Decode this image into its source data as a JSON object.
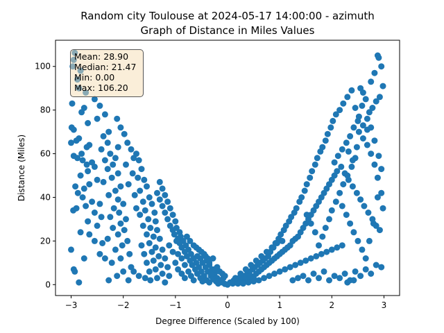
{
  "chart_data": {
    "type": "scatter",
    "title_line1": "Random city Toulouse at 2024-05-17 14:00:00  - azimuth",
    "title_line2": "Graph of Distance in Miles Values",
    "xlabel": "Degree Difference (Scaled by 100)",
    "ylabel": "Distance (Miles)",
    "xlim": [
      -3.3,
      3.3
    ],
    "ylim": [
      -5,
      112
    ],
    "x_ticks": [
      -3,
      -2,
      -1,
      0,
      1,
      2,
      3
    ],
    "x_tick_labels": [
      "−3",
      "−2",
      "−1",
      "0",
      "1",
      "2",
      "3"
    ],
    "y_ticks": [
      0,
      20,
      40,
      60,
      80,
      100
    ],
    "y_tick_labels": [
      "0",
      "20",
      "40",
      "60",
      "80",
      "100"
    ],
    "grid": false,
    "marker_color": "#1f77b4",
    "stats": {
      "mean": "Mean: 28.90",
      "median": "Median: 21.47",
      "min": "Min: 0.00",
      "max": "Max: 106.20"
    },
    "points": [
      [
        -2.93,
        106.2
      ],
      [
        -2.95,
        103
      ],
      [
        -2.82,
        98
      ],
      [
        -2.97,
        100
      ],
      [
        -2.88,
        94
      ],
      [
        -2.85,
        90
      ],
      [
        -2.72,
        88
      ],
      [
        -2.98,
        83
      ],
      [
        -2.75,
        81
      ],
      [
        -2.8,
        79
      ],
      [
        -2.68,
        74
      ],
      [
        -2.99,
        72
      ],
      [
        -2.95,
        71
      ],
      [
        -2.85,
        67
      ],
      [
        -2.9,
        66
      ],
      [
        -3.0,
        65
      ],
      [
        -2.65,
        64
      ],
      [
        -2.7,
        63
      ],
      [
        -2.8,
        60
      ],
      [
        -2.95,
        59
      ],
      [
        -2.88,
        58
      ],
      [
        -2.78,
        57
      ],
      [
        -2.6,
        56
      ],
      [
        -2.7,
        55
      ],
      [
        -2.55,
        54
      ],
      [
        -2.68,
        52
      ],
      [
        -2.82,
        50
      ],
      [
        -2.5,
        48
      ],
      [
        -2.65,
        46
      ],
      [
        -2.92,
        45
      ],
      [
        -2.75,
        44
      ],
      [
        -2.87,
        42
      ],
      [
        -2.78,
        40
      ],
      [
        -2.6,
        38
      ],
      [
        -2.45,
        37
      ],
      [
        -2.72,
        36
      ],
      [
        -2.9,
        35
      ],
      [
        -2.96,
        34
      ],
      [
        -2.55,
        33
      ],
      [
        -2.42,
        31
      ],
      [
        -2.68,
        29
      ],
      [
        -2.5,
        27
      ],
      [
        -2.82,
        24
      ],
      [
        -2.65,
        23
      ],
      [
        -2.55,
        20
      ],
      [
        -2.4,
        19
      ],
      [
        -2.75,
        12
      ],
      [
        -2.95,
        7
      ],
      [
        -2.93,
        6
      ],
      [
        -2.85,
        1
      ],
      [
        -3.0,
        16
      ],
      [
        -2.45,
        14
      ],
      [
        -2.35,
        12
      ],
      [
        -2.55,
        85
      ],
      [
        -2.45,
        82
      ],
      [
        -2.35,
        78
      ],
      [
        -2.5,
        76
      ],
      [
        -2.28,
        70
      ],
      [
        -2.38,
        68
      ],
      [
        -2.3,
        65
      ],
      [
        -2.42,
        62
      ],
      [
        -2.25,
        60
      ],
      [
        -2.15,
        58
      ],
      [
        -2.35,
        57
      ],
      [
        -2.2,
        55
      ],
      [
        -2.3,
        53
      ],
      [
        -2.1,
        51
      ],
      [
        -2.22,
        49
      ],
      [
        -2.38,
        47
      ],
      [
        -2.05,
        45
      ],
      [
        -2.15,
        43
      ],
      [
        -2.28,
        41
      ],
      [
        -2.1,
        39
      ],
      [
        -2.0,
        37
      ],
      [
        -2.18,
        35
      ],
      [
        -2.08,
        33
      ],
      [
        -2.25,
        31
      ],
      [
        -1.95,
        30
      ],
      [
        -2.05,
        28
      ],
      [
        -2.2,
        26
      ],
      [
        -1.98,
        25
      ],
      [
        -2.1,
        23
      ],
      [
        -2.3,
        21
      ],
      [
        -1.92,
        20
      ],
      [
        -2.02,
        18
      ],
      [
        -2.15,
        16
      ],
      [
        -1.88,
        14
      ],
      [
        -2.05,
        12
      ],
      [
        -2.22,
        10
      ],
      [
        -1.85,
        8
      ],
      [
        -2.0,
        6
      ],
      [
        -2.12,
        4
      ],
      [
        -1.9,
        2
      ],
      [
        -2.28,
        2
      ],
      [
        -2.12,
        76
      ],
      [
        -2.05,
        72
      ],
      [
        -1.98,
        69
      ],
      [
        -1.92,
        65
      ],
      [
        -2.1,
        63
      ],
      [
        -1.85,
        62
      ],
      [
        -1.75,
        60
      ],
      [
        -1.8,
        58
      ],
      [
        -1.7,
        57
      ],
      [
        -1.95,
        55
      ],
      [
        -1.65,
        53
      ],
      [
        -1.82,
        51
      ],
      [
        -1.72,
        49
      ],
      [
        -1.6,
        48
      ],
      [
        -1.9,
        46
      ],
      [
        -1.55,
        45
      ],
      [
        -1.68,
        43
      ],
      [
        -1.78,
        41
      ],
      [
        -1.5,
        40
      ],
      [
        -1.62,
        38
      ],
      [
        -1.45,
        37
      ],
      [
        -1.75,
        35
      ],
      [
        -1.58,
        34
      ],
      [
        -1.4,
        33
      ],
      [
        -1.68,
        32
      ],
      [
        -1.52,
        30
      ],
      [
        -1.38,
        29
      ],
      [
        -1.62,
        27
      ],
      [
        -1.48,
        26
      ],
      [
        -1.35,
        25
      ],
      [
        -1.55,
        23
      ],
      [
        -1.42,
        22
      ],
      [
        -1.3,
        21
      ],
      [
        -1.5,
        19
      ],
      [
        -1.65,
        18
      ],
      [
        -1.38,
        17
      ],
      [
        -1.25,
        16
      ],
      [
        -1.45,
        15
      ],
      [
        -1.6,
        14
      ],
      [
        -1.32,
        13
      ],
      [
        -1.2,
        12
      ],
      [
        -1.42,
        11
      ],
      [
        -1.55,
        10
      ],
      [
        -1.28,
        9
      ],
      [
        -1.15,
        8
      ],
      [
        -1.38,
        7
      ],
      [
        -1.5,
        6
      ],
      [
        -1.25,
        5
      ],
      [
        -1.12,
        4
      ],
      [
        -1.35,
        3
      ],
      [
        -1.48,
        2
      ],
      [
        -1.2,
        1
      ],
      [
        -1.7,
        4
      ],
      [
        -1.8,
        6
      ],
      [
        -1.58,
        3
      ],
      [
        -1.3,
        47
      ],
      [
        -1.25,
        44
      ],
      [
        -1.35,
        42
      ],
      [
        -1.2,
        41
      ],
      [
        -1.3,
        39
      ],
      [
        -1.15,
        38
      ],
      [
        -1.25,
        36
      ],
      [
        -1.1,
        35
      ],
      [
        -1.2,
        33
      ],
      [
        -1.05,
        32
      ],
      [
        -1.15,
        30
      ],
      [
        -1.0,
        29
      ],
      [
        -1.1,
        27
      ],
      [
        -0.98,
        26
      ],
      [
        -1.05,
        25
      ],
      [
        -0.92,
        24
      ],
      [
        -1.02,
        23
      ],
      [
        -0.9,
        22
      ],
      [
        -0.95,
        21
      ],
      [
        -0.85,
        20
      ],
      [
        -0.92,
        19
      ],
      [
        -0.8,
        18
      ],
      [
        -0.88,
        17
      ],
      [
        -0.75,
        16
      ],
      [
        -0.82,
        15
      ],
      [
        -0.7,
        14
      ],
      [
        -0.78,
        13
      ],
      [
        -0.65,
        12
      ],
      [
        -0.72,
        11
      ],
      [
        -0.6,
        10
      ],
      [
        -0.68,
        9
      ],
      [
        -0.55,
        8
      ],
      [
        -0.62,
        7
      ],
      [
        -0.5,
        6
      ],
      [
        -0.58,
        5
      ],
      [
        -0.45,
        4
      ],
      [
        -0.52,
        3
      ],
      [
        -0.4,
        2
      ],
      [
        -0.48,
        1.5
      ],
      [
        -0.35,
        1
      ],
      [
        -0.95,
        14
      ],
      [
        -0.88,
        12
      ],
      [
        -1.0,
        10
      ],
      [
        -0.82,
        9
      ],
      [
        -0.95,
        7
      ],
      [
        -0.75,
        6
      ],
      [
        -0.88,
        5
      ],
      [
        -0.7,
        4
      ],
      [
        -0.82,
        3
      ],
      [
        -0.65,
        2
      ],
      [
        -1.05,
        15
      ],
      [
        -1.12,
        18
      ],
      [
        -0.98,
        20
      ],
      [
        -0.78,
        22
      ],
      [
        -0.72,
        20
      ],
      [
        -0.65,
        18
      ],
      [
        -0.6,
        17
      ],
      [
        -0.55,
        16
      ],
      [
        -0.5,
        15
      ],
      [
        -0.45,
        14
      ],
      [
        -0.58,
        13
      ],
      [
        -0.52,
        12
      ],
      [
        -0.4,
        11
      ],
      [
        -0.48,
        10
      ],
      [
        -0.35,
        9
      ],
      [
        -0.42,
        8
      ],
      [
        -0.3,
        7
      ],
      [
        -0.38,
        6
      ],
      [
        -0.25,
        5
      ],
      [
        -0.32,
        4
      ],
      [
        -0.2,
        3
      ],
      [
        -0.28,
        2.5
      ],
      [
        -0.15,
        2
      ],
      [
        -0.22,
        1.5
      ],
      [
        -0.1,
        1
      ],
      [
        -0.18,
        0.5
      ],
      [
        -0.05,
        0.3
      ],
      [
        -0.12,
        2
      ],
      [
        -0.08,
        3
      ],
      [
        -0.3,
        5
      ],
      [
        -0.25,
        7
      ],
      [
        -0.35,
        10
      ],
      [
        -0.28,
        12
      ],
      [
        -0.42,
        13
      ],
      [
        -0.38,
        12
      ],
      [
        -0.2,
        8
      ],
      [
        -0.15,
        6
      ],
      [
        -0.1,
        5
      ],
      [
        -0.05,
        4
      ],
      [
        0.0,
        0.0
      ],
      [
        0.05,
        1
      ],
      [
        0.1,
        0.5
      ],
      [
        0.12,
        2
      ],
      [
        0.15,
        1
      ],
      [
        0.2,
        0.5
      ],
      [
        0.22,
        3
      ],
      [
        0.25,
        2
      ],
      [
        0.3,
        1
      ],
      [
        0.32,
        4
      ],
      [
        0.35,
        3
      ],
      [
        0.38,
        5
      ],
      [
        0.4,
        2
      ],
      [
        0.42,
        6
      ],
      [
        0.45,
        4
      ],
      [
        0.48,
        7
      ],
      [
        0.5,
        3
      ],
      [
        0.52,
        8
      ],
      [
        0.55,
        5
      ],
      [
        0.58,
        9
      ],
      [
        0.6,
        6
      ],
      [
        0.62,
        10
      ],
      [
        0.65,
        7
      ],
      [
        0.68,
        11
      ],
      [
        0.7,
        8
      ],
      [
        0.72,
        12
      ],
      [
        0.75,
        9
      ],
      [
        0.78,
        13
      ],
      [
        0.8,
        10
      ],
      [
        0.82,
        15
      ],
      [
        0.85,
        11
      ],
      [
        0.88,
        17
      ],
      [
        0.9,
        12
      ],
      [
        0.92,
        19
      ],
      [
        0.95,
        13
      ],
      [
        0.98,
        21
      ],
      [
        1.0,
        14
      ],
      [
        1.02,
        23
      ],
      [
        1.05,
        15
      ],
      [
        1.08,
        25
      ],
      [
        1.1,
        16
      ],
      [
        1.12,
        27
      ],
      [
        1.15,
        17
      ],
      [
        1.18,
        29
      ],
      [
        1.2,
        18
      ],
      [
        1.22,
        31
      ],
      [
        1.25,
        20
      ],
      [
        1.28,
        33
      ],
      [
        1.3,
        21
      ],
      [
        1.32,
        35
      ],
      [
        1.35,
        22
      ],
      [
        1.38,
        38
      ],
      [
        1.4,
        24
      ],
      [
        1.42,
        40
      ],
      [
        1.45,
        26
      ],
      [
        1.48,
        43
      ],
      [
        1.5,
        28
      ],
      [
        1.52,
        46
      ],
      [
        1.55,
        30
      ],
      [
        1.58,
        49
      ],
      [
        1.6,
        32
      ],
      [
        1.62,
        52
      ],
      [
        1.65,
        34
      ],
      [
        1.68,
        55
      ],
      [
        1.7,
        36
      ],
      [
        1.72,
        58
      ],
      [
        1.75,
        38
      ],
      [
        1.78,
        61
      ],
      [
        1.8,
        40
      ],
      [
        1.82,
        63
      ],
      [
        1.85,
        42
      ],
      [
        1.88,
        66
      ],
      [
        1.9,
        44
      ],
      [
        1.92,
        69
      ],
      [
        1.95,
        46
      ],
      [
        1.98,
        72
      ],
      [
        2.0,
        48
      ],
      [
        2.02,
        75
      ],
      [
        2.05,
        50
      ],
      [
        2.08,
        78
      ],
      [
        2.1,
        52
      ],
      [
        0.15,
        3
      ],
      [
        0.25,
        5
      ],
      [
        0.35,
        7
      ],
      [
        0.45,
        9
      ],
      [
        0.55,
        11
      ],
      [
        0.65,
        13
      ],
      [
        0.75,
        15
      ],
      [
        0.85,
        17
      ],
      [
        0.95,
        19
      ],
      [
        1.05,
        20
      ],
      [
        0.3,
        0.5
      ],
      [
        0.4,
        1
      ],
      [
        0.5,
        1.5
      ],
      [
        0.6,
        2
      ],
      [
        0.7,
        3
      ],
      [
        0.8,
        4
      ],
      [
        0.9,
        5
      ],
      [
        1.0,
        6
      ],
      [
        1.1,
        7
      ],
      [
        1.2,
        8
      ],
      [
        1.3,
        9
      ],
      [
        1.4,
        10
      ],
      [
        1.5,
        11
      ],
      [
        1.6,
        12
      ],
      [
        1.7,
        13
      ],
      [
        1.8,
        14
      ],
      [
        1.9,
        15
      ],
      [
        2.0,
        16
      ],
      [
        2.1,
        17
      ],
      [
        2.2,
        18
      ],
      [
        1.25,
        2
      ],
      [
        1.35,
        3
      ],
      [
        1.45,
        4
      ],
      [
        1.55,
        2
      ],
      [
        1.65,
        5
      ],
      [
        1.75,
        3
      ],
      [
        1.85,
        6
      ],
      [
        1.95,
        2
      ],
      [
        2.05,
        4
      ],
      [
        2.15,
        3
      ],
      [
        2.25,
        5
      ],
      [
        2.35,
        2
      ],
      [
        2.45,
        6
      ],
      [
        2.55,
        4
      ],
      [
        2.65,
        7
      ],
      [
        2.75,
        5
      ],
      [
        2.85,
        9
      ],
      [
        2.95,
        8
      ],
      [
        2.3,
        1
      ],
      [
        2.42,
        2
      ],
      [
        2.15,
        80
      ],
      [
        2.22,
        83
      ],
      [
        2.3,
        86
      ],
      [
        2.38,
        89
      ],
      [
        2.45,
        81
      ],
      [
        2.52,
        77
      ],
      [
        2.6,
        73
      ],
      [
        2.68,
        71
      ],
      [
        2.75,
        93
      ],
      [
        2.82,
        97
      ],
      [
        2.88,
        105
      ],
      [
        2.9,
        104
      ],
      [
        2.95,
        100
      ],
      [
        2.98,
        91
      ],
      [
        2.92,
        86
      ],
      [
        2.85,
        84
      ],
      [
        2.78,
        81
      ],
      [
        2.72,
        79
      ],
      [
        2.65,
        85
      ],
      [
        2.58,
        82
      ],
      [
        2.5,
        75
      ],
      [
        2.42,
        72
      ],
      [
        2.35,
        68
      ],
      [
        2.28,
        65
      ],
      [
        2.2,
        62
      ],
      [
        2.12,
        59
      ],
      [
        2.05,
        56
      ],
      [
        2.18,
        54
      ],
      [
        2.25,
        51
      ],
      [
        2.32,
        48
      ],
      [
        2.4,
        45
      ],
      [
        2.48,
        42
      ],
      [
        2.55,
        39
      ],
      [
        2.62,
        36
      ],
      [
        2.7,
        33
      ],
      [
        2.78,
        30
      ],
      [
        2.85,
        27
      ],
      [
        2.92,
        25
      ],
      [
        2.98,
        35
      ],
      [
        2.95,
        42
      ],
      [
        2.88,
        49
      ],
      [
        2.82,
        55
      ],
      [
        2.75,
        60
      ],
      [
        2.68,
        64
      ],
      [
        2.6,
        67
      ],
      [
        2.52,
        70
      ],
      [
        2.45,
        58
      ],
      [
        2.38,
        54
      ],
      [
        2.3,
        50
      ],
      [
        2.22,
        46
      ],
      [
        2.15,
        42
      ],
      [
        2.08,
        38
      ],
      [
        2.0,
        34
      ],
      [
        1.95,
        30
      ],
      [
        1.88,
        26
      ],
      [
        1.82,
        22
      ],
      [
        1.75,
        18
      ],
      [
        1.68,
        24
      ],
      [
        1.6,
        28
      ],
      [
        1.52,
        32
      ],
      [
        2.2,
        36
      ],
      [
        2.28,
        32
      ],
      [
        2.35,
        28
      ],
      [
        2.42,
        24
      ],
      [
        2.5,
        20
      ],
      [
        2.58,
        16
      ],
      [
        2.65,
        12
      ],
      [
        2.72,
        20
      ],
      [
        2.8,
        28
      ],
      [
        2.88,
        40
      ],
      [
        2.95,
        53
      ],
      [
        2.9,
        59
      ],
      [
        2.82,
        66
      ],
      [
        2.75,
        72
      ],
      [
        2.68,
        76
      ],
      [
        2.6,
        88
      ],
      [
        2.55,
        90
      ],
      [
        2.48,
        63
      ],
      [
        2.4,
        57
      ],
      [
        2.32,
        61
      ]
    ]
  }
}
